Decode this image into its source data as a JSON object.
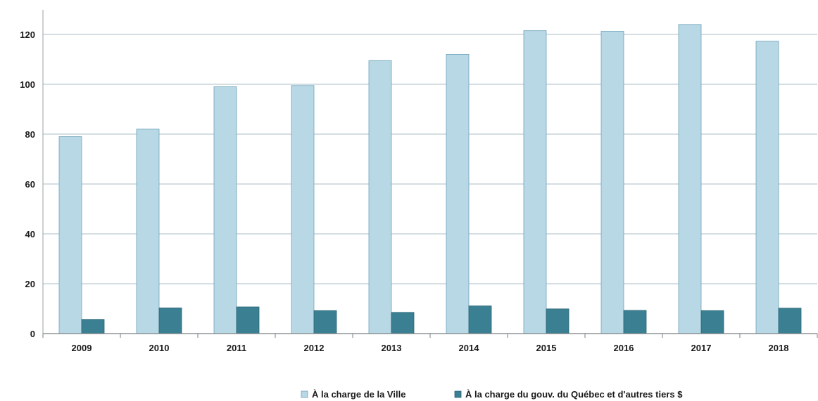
{
  "chart_data": {
    "type": "bar",
    "title": "",
    "xlabel": "",
    "ylabel": "",
    "categories": [
      "2009",
      "2010",
      "2011",
      "2012",
      "2013",
      "2014",
      "2015",
      "2016",
      "2017",
      "2018"
    ],
    "series": [
      {
        "name": "À la charge de la Ville",
        "color": "#b9d8e5",
        "border": "#6fa3bb",
        "values": [
          79,
          82,
          99,
          99.5,
          109.5,
          112,
          121.5,
          121.3,
          124,
          117.3
        ]
      },
      {
        "name": "À la charge du gouv. du Québec et d'autres tiers $",
        "color": "#3b7f92",
        "border": "#2c6575",
        "values": [
          5.7,
          10.3,
          10.7,
          9.2,
          8.5,
          11.1,
          9.9,
          9.3,
          9.2,
          10.2
        ]
      }
    ],
    "yticks": [
      0,
      20,
      40,
      60,
      80,
      100,
      120
    ],
    "ylim": [
      0,
      130
    ],
    "grid": true,
    "legend_position": "bottom-center"
  }
}
